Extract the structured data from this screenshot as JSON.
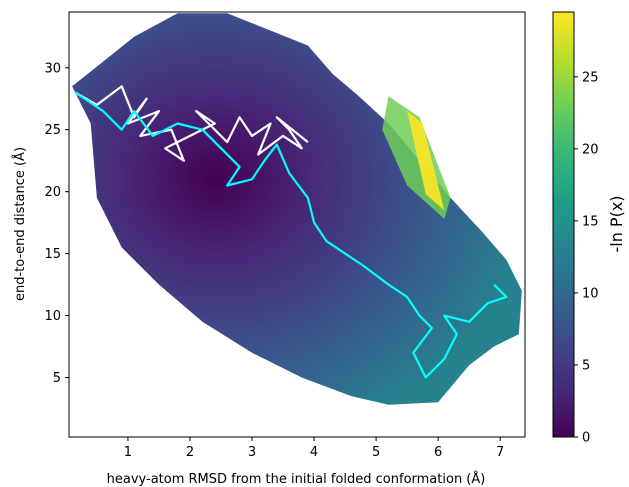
{
  "chart_data": {
    "type": "heatmap",
    "xlabel": "heavy-atom RMSD from the initial folded conformation (Å)",
    "ylabel": "end-to-end distance (Å)",
    "xlim": [
      0.05,
      7.4
    ],
    "ylim": [
      0.2,
      34.5
    ],
    "x_ticks": [
      1,
      2,
      3,
      4,
      5,
      6,
      7
    ],
    "y_ticks": [
      5,
      10,
      15,
      20,
      25,
      30
    ],
    "grid": false,
    "colorbar": {
      "label": "-ln P(x)",
      "range": [
        0,
        29.5
      ],
      "ticks": [
        0,
        5,
        10,
        15,
        20,
        25
      ],
      "colormap": "viridis",
      "colormap_stops": [
        "#440154",
        "#482878",
        "#3e4989",
        "#31688e",
        "#26828e",
        "#1f9e89",
        "#35b779",
        "#6ece58",
        "#b5de2b",
        "#fde725"
      ]
    },
    "density": {
      "description_points": "free-energy minimum region",
      "min_value": 0,
      "max_value": 29.5,
      "support_polygon": [
        [
          0.1,
          28.5
        ],
        [
          0.6,
          30.5
        ],
        [
          1.1,
          32.5
        ],
        [
          1.8,
          34.4
        ],
        [
          2.6,
          34.4
        ],
        [
          3.2,
          33.2
        ],
        [
          3.9,
          31.8
        ],
        [
          4.3,
          29.5
        ],
        [
          4.7,
          27.8
        ],
        [
          5.2,
          25.5
        ],
        [
          5.7,
          22.5
        ],
        [
          6.2,
          19.5
        ],
        [
          6.7,
          16.8
        ],
        [
          7.1,
          14.5
        ],
        [
          7.35,
          12.0
        ],
        [
          7.3,
          8.5
        ],
        [
          6.9,
          7.5
        ],
        [
          6.5,
          6.0
        ],
        [
          6.2,
          4.2
        ],
        [
          6.0,
          3.0
        ],
        [
          5.2,
          2.8
        ],
        [
          4.6,
          3.5
        ],
        [
          3.8,
          5.0
        ],
        [
          3.0,
          7.0
        ],
        [
          2.2,
          9.5
        ],
        [
          1.5,
          12.5
        ],
        [
          0.9,
          15.5
        ],
        [
          0.5,
          19.5
        ],
        [
          0.45,
          22.5
        ],
        [
          0.4,
          25.5
        ]
      ],
      "basin_center": [
        2.4,
        20.0
      ],
      "high_region": [
        [
          5.4,
          27.0
        ],
        [
          6.0,
          19.0
        ]
      ]
    },
    "series": [
      {
        "color": "#ffffff",
        "points": [
          [
            0.15,
            28.0
          ],
          [
            0.5,
            27.0
          ],
          [
            0.9,
            28.5
          ],
          [
            1.1,
            26.0
          ],
          [
            1.3,
            27.5
          ],
          [
            1.0,
            25.5
          ],
          [
            1.5,
            26.5
          ],
          [
            1.2,
            24.5
          ],
          [
            1.7,
            25.0
          ],
          [
            1.9,
            22.5
          ],
          [
            1.6,
            23.5
          ],
          [
            2.0,
            24.5
          ],
          [
            2.4,
            25.5
          ],
          [
            2.1,
            26.5
          ],
          [
            2.6,
            24.0
          ],
          [
            2.8,
            26.0
          ],
          [
            3.0,
            24.5
          ],
          [
            3.3,
            25.5
          ],
          [
            3.1,
            23.0
          ],
          [
            3.5,
            24.5
          ],
          [
            3.8,
            23.5
          ],
          [
            3.6,
            25.0
          ],
          [
            3.4,
            26.0
          ],
          [
            3.9,
            24.0
          ]
        ]
      },
      {
        "color": "#00ffff",
        "points": [
          [
            0.15,
            28.0
          ],
          [
            0.6,
            26.5
          ],
          [
            0.9,
            25.0
          ],
          [
            1.1,
            26.5
          ],
          [
            1.4,
            24.5
          ],
          [
            1.8,
            25.5
          ],
          [
            2.2,
            25.0
          ],
          [
            2.5,
            23.5
          ],
          [
            2.8,
            22.0
          ],
          [
            2.6,
            20.5
          ],
          [
            3.0,
            21.0
          ],
          [
            3.2,
            22.5
          ],
          [
            3.4,
            23.8
          ],
          [
            3.6,
            21.5
          ],
          [
            3.9,
            19.5
          ],
          [
            4.0,
            17.5
          ],
          [
            4.2,
            16.0
          ],
          [
            4.5,
            15.0
          ],
          [
            4.8,
            14.0
          ],
          [
            5.2,
            12.5
          ],
          [
            5.5,
            11.5
          ],
          [
            5.7,
            10.0
          ],
          [
            5.9,
            9.0
          ],
          [
            5.6,
            7.0
          ],
          [
            5.8,
            5.0
          ],
          [
            6.1,
            6.5
          ],
          [
            6.3,
            8.5
          ],
          [
            6.1,
            10.0
          ],
          [
            6.5,
            9.5
          ],
          [
            6.8,
            11.0
          ],
          [
            7.1,
            11.5
          ],
          [
            6.9,
            12.5
          ]
        ]
      }
    ]
  }
}
